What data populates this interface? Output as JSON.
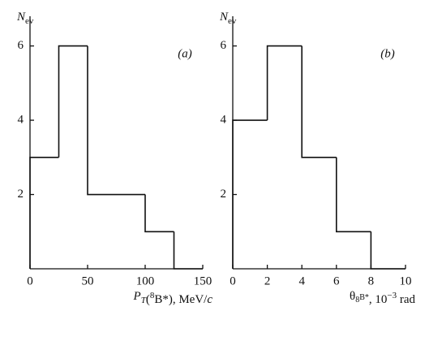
{
  "chart_data": [
    {
      "type": "histogram",
      "annotation": "(a)",
      "ylabel": "N",
      "ylabel_sub": "ev",
      "xlabel_parts": [
        "P",
        "T",
        "(",
        "8",
        "B*), MeV/",
        "c"
      ],
      "bins": [
        0,
        25,
        50,
        75,
        100,
        125,
        150
      ],
      "values": [
        3,
        6,
        2,
        2,
        1,
        0
      ],
      "xlim": [
        0,
        150
      ],
      "xticks": [
        0,
        50,
        100,
        150
      ],
      "ylim": [
        0,
        6.8
      ],
      "yticks": [
        2,
        4,
        6
      ],
      "color": "#111111"
    },
    {
      "type": "histogram",
      "annotation": "(b)",
      "ylabel": "N",
      "ylabel_sub": "ev",
      "xlabel_parts": [
        "θ",
        "8",
        "B*",
        ", 10",
        "−3",
        " rad"
      ],
      "bins": [
        0,
        2,
        4,
        6,
        8,
        10
      ],
      "values": [
        4,
        6,
        3,
        1,
        0
      ],
      "xlim": [
        0,
        10
      ],
      "xticks": [
        0,
        2,
        4,
        6,
        8,
        10
      ],
      "ylim": [
        0,
        6.8
      ],
      "yticks": [
        2,
        4,
        6
      ],
      "color": "#111111"
    }
  ]
}
